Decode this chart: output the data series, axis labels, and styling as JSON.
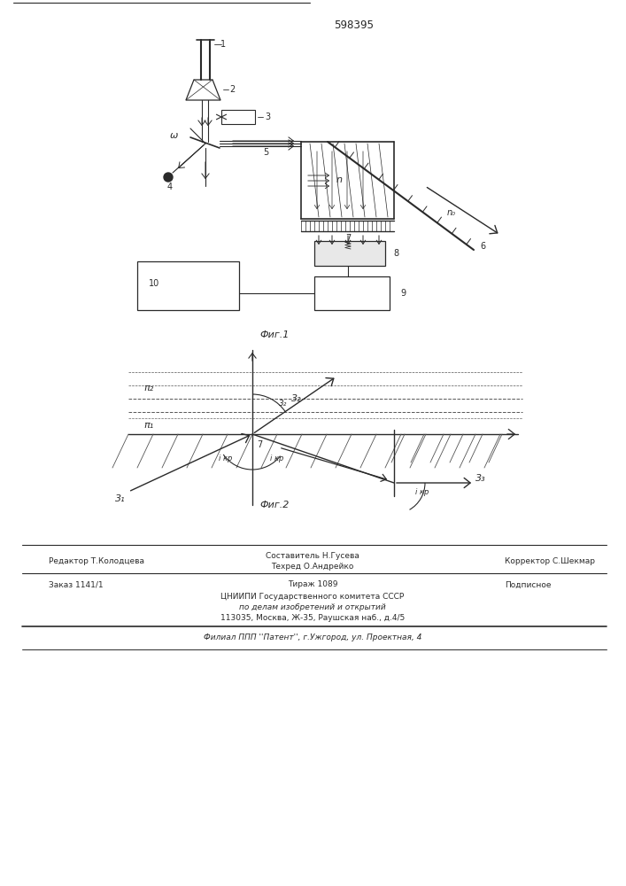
{
  "patent_number": "598395",
  "fig1_caption": "Фиг.1",
  "fig2_caption": "Фиг.2",
  "footer": {
    "editor": "Редактор Т.Колодцева",
    "composer": "Составитель Н.Гусева",
    "techred": "Техред О.Андрейко",
    "corrector": "Корректор С.Шекмар",
    "order": "Заказ 1141/1",
    "circulation": "Тираж 1089",
    "subscription": "Подписное",
    "org_line1": "ЦНИИПИ Государственного комитета СССР",
    "org_line2": "по делам изобретений и открытий",
    "org_line3": "113035, Москва, Ж-35, Раушская наб., д.4/5",
    "branch": "Филиал ППП ''Патент'', г.Ужгород, ул. Проектная, 4"
  },
  "lc": "#2a2a2a"
}
